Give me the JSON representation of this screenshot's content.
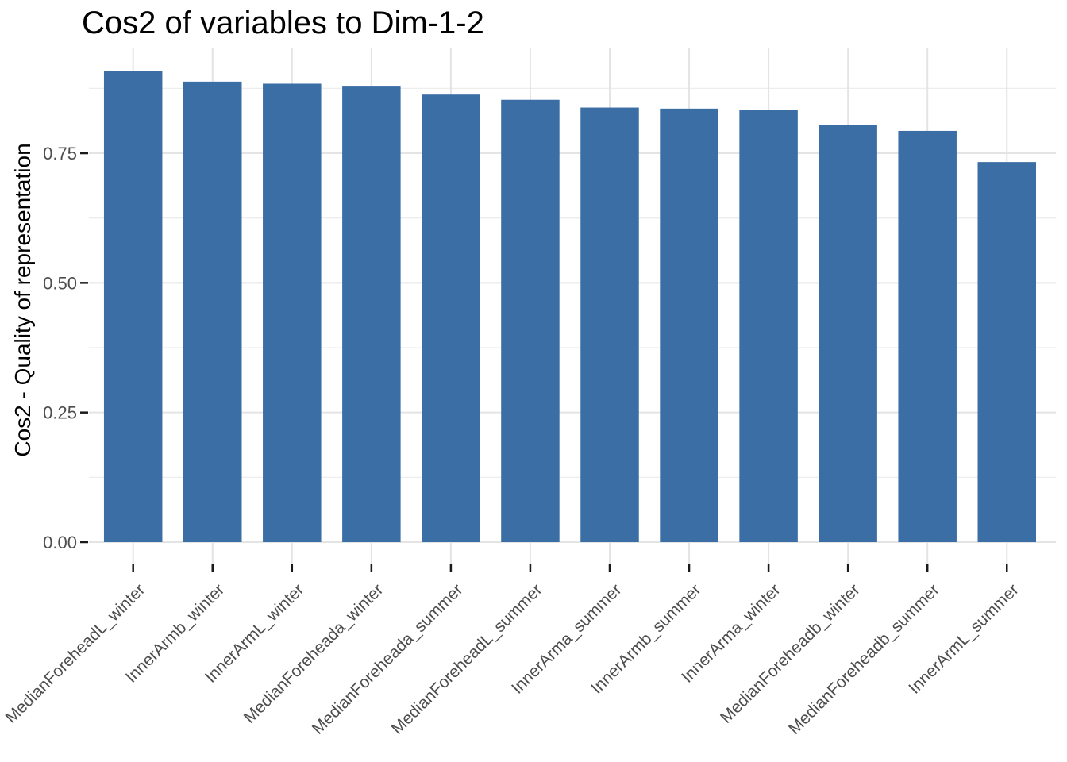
{
  "chart_data": {
    "type": "bar",
    "title": "Cos2 of variables to Dim-1-2",
    "ylabel": "Cos2 - Quality of representation",
    "xlabel": "",
    "categories": [
      "MedianForeheadL_winter",
      "InnerArmb_winter",
      "InnerArmL_winter",
      "MedianForeheada_winter",
      "MedianForeheada_summer",
      "MedianForeheadL_summer",
      "InnerArma_summer",
      "InnerArmb_summer",
      "InnerArma_winter",
      "MedianForeheadb_winter",
      "MedianForeheadb_summer",
      "InnerArmL_summer"
    ],
    "values": [
      0.908,
      0.888,
      0.884,
      0.88,
      0.863,
      0.853,
      0.838,
      0.836,
      0.833,
      0.804,
      0.793,
      0.733
    ],
    "y_major_ticks": {
      "values": [
        0.0,
        0.25,
        0.5,
        0.75
      ],
      "labels": [
        "0.00",
        "0.25",
        "0.50",
        "0.75"
      ]
    },
    "y_minor_ticks": [
      0.125,
      0.375,
      0.625,
      0.875
    ],
    "ylim": [
      0,
      0.952
    ],
    "x_label_angle": -45,
    "grid": "major+minor",
    "legend": "none",
    "sort": "descending"
  },
  "colors": {
    "bar": "#3A6EA5",
    "grid_major": "#E4E4E4",
    "grid_minor": "#EDEDED",
    "axis_text": "#4D4D4D",
    "tick_mark": "#1A1A1A",
    "title": "#000000",
    "background": "#FFFFFF"
  }
}
